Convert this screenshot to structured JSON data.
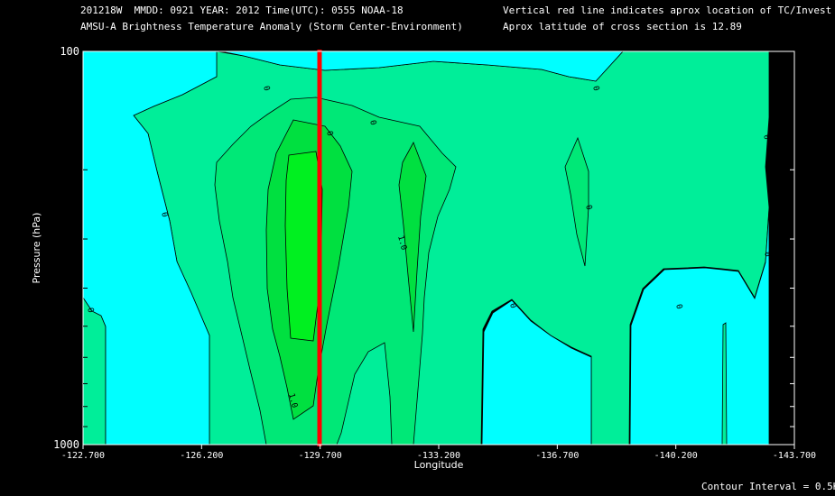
{
  "header": {
    "line1": "201218W  MMDD: 0921 YEAR: 2012 Time(UTC): 0555 NOAA-18",
    "line2": "AMSU-A Brightness Temperature Anomaly (Storm Center-Environment)",
    "line3": "Vertical red line indicates aprox location of TC/Invest",
    "line4": "Aprox latitude of cross section is 12.89"
  },
  "footer": {
    "contour_interval": "Contour Interval = 0.5K"
  },
  "colors": {
    "background": "#000000",
    "level_0": "#00ffff",
    "level_05": "#00ee99",
    "level_10": "#00e877",
    "level_15": "#00e040",
    "level_20": "#00f020",
    "storm_line": "#ff0000"
  },
  "chart_data": {
    "type": "heatmap",
    "title": "AMSU-A Brightness Temperature Anomaly (Storm Center-Environment)",
    "xlabel": "Longitude",
    "ylabel": "Pressure (hPa)",
    "x_ticks": [
      "-122.700",
      "-126.200",
      "-129.700",
      "-133.200",
      "-136.700",
      "-140.200",
      "-143.700"
    ],
    "y_ticks": [
      "100",
      "1000"
    ],
    "xlim": [
      -122.7,
      -143.7
    ],
    "ylim": [
      1000,
      100
    ],
    "y_scale": "log",
    "storm_longitude": -129.7,
    "contour_interval_K": 0.5,
    "contour_levels": [
      0.0,
      0.5,
      1.0,
      1.5,
      2.0
    ],
    "contour_labels": [
      "0",
      "0",
      "0",
      "0",
      "0",
      "0",
      "0",
      "0",
      "0",
      "0",
      "0",
      "1.0",
      "1.0"
    ],
    "latitude": 12.89
  }
}
